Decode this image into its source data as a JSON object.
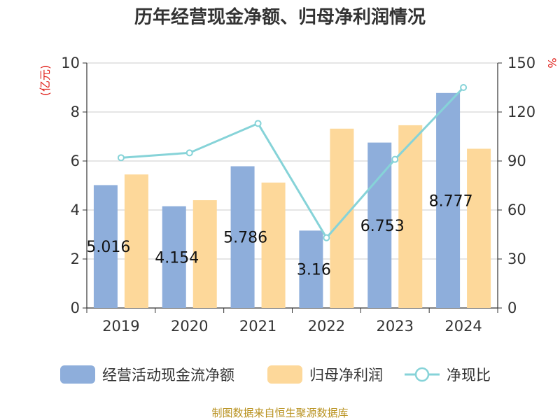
{
  "chart_data": {
    "type": "bar",
    "title": "历年经营现金净额、归母净利润情况",
    "categories": [
      "2019",
      "2020",
      "2021",
      "2022",
      "2023",
      "2024"
    ],
    "series": [
      {
        "name": "经营活动现金流净额",
        "type": "bar",
        "axis": "left",
        "color": "#8eaedb",
        "values": [
          5.016,
          4.154,
          5.786,
          3.16,
          6.753,
          8.777
        ]
      },
      {
        "name": "归母净利润",
        "type": "bar",
        "axis": "left",
        "color": "#fdd89a",
        "values": [
          5.45,
          4.4,
          5.12,
          7.32,
          7.46,
          6.5
        ]
      },
      {
        "name": "净现比",
        "type": "line",
        "axis": "right",
        "color": "#86d3d8",
        "values": [
          92,
          95,
          113,
          43,
          91,
          135
        ]
      }
    ],
    "bar_labels": [
      "5.016",
      "4.154",
      "5.786",
      "3.16",
      "6.753",
      "8.777"
    ],
    "left_axis": {
      "unit": "(亿元)",
      "ylim": [
        0,
        10
      ],
      "ticks": [
        "0",
        "2",
        "4",
        "6",
        "8",
        "10"
      ]
    },
    "right_axis": {
      "unit": "%",
      "ylim": [
        0,
        150
      ],
      "ticks": [
        "0",
        "30",
        "60",
        "90",
        "120",
        "150"
      ]
    },
    "grid": true,
    "legend_position": "bottom",
    "source": "制图数据来自恒生聚源数据库"
  }
}
